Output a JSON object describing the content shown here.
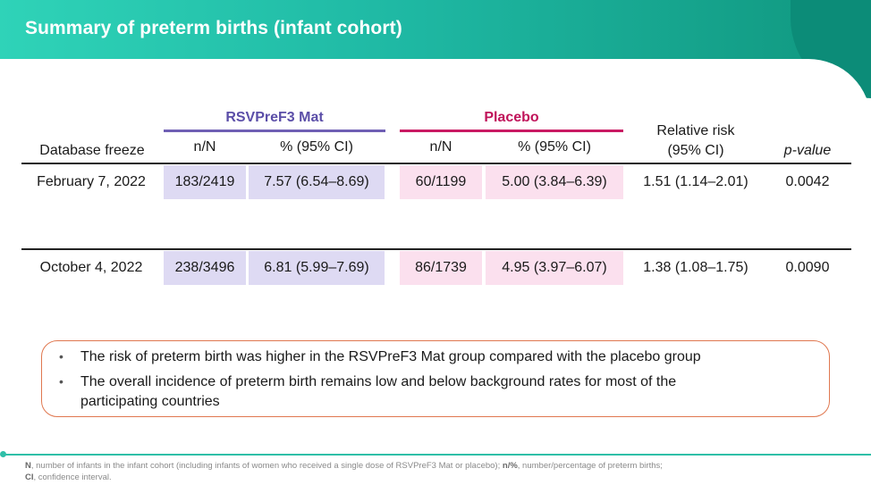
{
  "slide": {
    "title": "Summary of preterm births (infant cohort)"
  },
  "table": {
    "group_rsv": "RSVPreF3 Mat",
    "group_placebo": "Placebo",
    "col_database_freeze": "Database freeze",
    "col_nN_rsv": "n/N",
    "col_pct_rsv": "% (95% CI)",
    "col_nN_placebo": "n/N",
    "col_pct_placebo": "% (95% CI)",
    "col_rr_line1": "Relative risk",
    "col_rr_line2": "(95% CI)",
    "col_pvalue": "p-value",
    "rows": [
      {
        "freeze": "February 7, 2022",
        "rsv_nN": "183/2419",
        "rsv_pct": "7.57 (6.54–8.69)",
        "placebo_nN": "60/1199",
        "placebo_pct": "5.00 (3.84–6.39)",
        "rr": "1.51 (1.14–2.01)",
        "p": "0.0042"
      },
      {
        "freeze": "October 4, 2022",
        "rsv_nN": "238/3496",
        "rsv_pct": "6.81 (5.99–7.69)",
        "placebo_nN": "86/1739",
        "placebo_pct": "4.95 (3.97–6.07)",
        "rr": "1.38 (1.08–1.75)",
        "p": "0.0090"
      }
    ]
  },
  "summary": {
    "bullet_symbol": "•",
    "bullet1": "The risk of preterm birth was higher in the RSVPreF3 Mat group compared with the placebo group",
    "bullet2_line1": "The overall incidence of preterm birth remains low and below background rates for most of the",
    "bullet2_line2": "participating countries"
  },
  "footnote": {
    "n_abbr": "N",
    "n_text": ", number of infants in the infant cohort (including infants of women who received a single dose of RSVPreF3 Mat or placebo); ",
    "np_abbr": "n/%",
    "np_text": ", number/percentage of preterm births;",
    "ci_abbr": "CI",
    "ci_text": ", confidence interval."
  },
  "colors": {
    "header_teal": "#1fb9a4",
    "rsv_purple": "#6f5fb4",
    "placebo_magenta": "#c91a63",
    "box_border_orange": "#e07850"
  }
}
